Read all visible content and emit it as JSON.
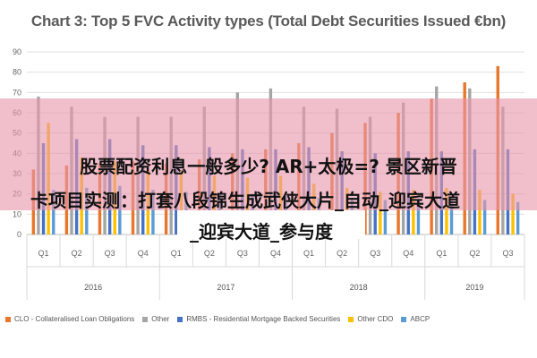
{
  "chart_data": {
    "type": "bar",
    "title": "Chart 3: Top 5 FVC Activity types (Total Debt Securities Issued €bn)",
    "ylim": [
      0,
      90
    ],
    "yticks": [
      0,
      10,
      20,
      30,
      40,
      50,
      60,
      70,
      80,
      90
    ],
    "grid": true,
    "legend_position": "bottom",
    "years": [
      "2016",
      "2017",
      "2018",
      "2019"
    ],
    "categories": [
      "Q1",
      "Q2",
      "Q3",
      "Q4",
      "Q1",
      "Q2",
      "Q3",
      "Q4",
      "Q1",
      "Q2",
      "Q3",
      "Q4",
      "Q1",
      "Q2",
      "Q3"
    ],
    "series": [
      {
        "name": "CLO - Collateralised Loan Obligations",
        "color": "#e8762c",
        "values": [
          32,
          34,
          35,
          36,
          35,
          37,
          40,
          42,
          45,
          50,
          55,
          60,
          67,
          75,
          83
        ]
      },
      {
        "name": "Other",
        "color": "#a5a5a5",
        "values": [
          68,
          63,
          58,
          58,
          58,
          63,
          70,
          72,
          63,
          62,
          58,
          65,
          73,
          72,
          63
        ]
      },
      {
        "name": "RMBS - Residential Mortgage Backed Securities",
        "color": "#4472c4",
        "values": [
          45,
          47,
          47,
          44,
          44,
          43,
          42,
          42,
          43,
          41,
          40,
          41,
          41,
          42,
          42
        ]
      },
      {
        "name": "Other CDO",
        "color": "#ffc000",
        "values": [
          55,
          38,
          36,
          32,
          30,
          29,
          28,
          29,
          25,
          23,
          21,
          22,
          23,
          22,
          20
        ]
      },
      {
        "name": "ABCP",
        "color": "#5b9bd5",
        "values": [
          22,
          23,
          24,
          22,
          21,
          20,
          20,
          19,
          18,
          18,
          17,
          17,
          18,
          17,
          16
        ]
      }
    ]
  },
  "overlay": {
    "line1": "股票配资利息一般多少? AR+太极=? 景区新晋",
    "line2": "卡项目实测：打套八段锦生成武侠大片_自动_迎宾大道",
    "line3": "_迎宾大道_参与度"
  }
}
